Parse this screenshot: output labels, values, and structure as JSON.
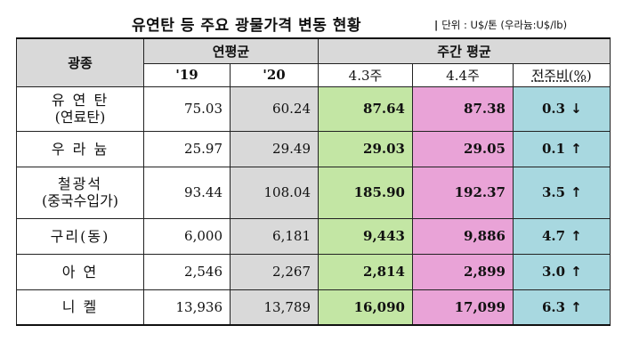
{
  "title": "유연탄 등 주요 광물가격 변동 현황",
  "unit_note": "단위 : U$/톤 (우라늄:U$/lb)",
  "headers": {
    "mineral": "광종",
    "annual_avg": "연평균",
    "weekly_avg": "주간 평균",
    "y19": "'19",
    "y20": "'20",
    "w43": "4.3주",
    "w44": "4.4주",
    "wow": "전주비(%)"
  },
  "rows": [
    {
      "name": "유 연 탄",
      "name2": "(연료탄)",
      "y19": "75.03",
      "y20": "60.24",
      "w43": "87.64",
      "w44": "87.38",
      "chg": "0.3",
      "dir": "down"
    },
    {
      "name": "우 라 늄",
      "name2": "",
      "y19": "25.97",
      "y20": "29.49",
      "w43": "29.03",
      "w44": "29.05",
      "chg": "0.1",
      "dir": "up"
    },
    {
      "name": "철광석",
      "name2": "(중국수입가)",
      "y19": "93.44",
      "y20": "108.04",
      "w43": "185.90",
      "w44": "192.37",
      "chg": "3.5",
      "dir": "up"
    },
    {
      "name": "구리(동)",
      "name2": "",
      "y19": "6,000",
      "y20": "6,181",
      "w43": "9,443",
      "w44": "9,886",
      "chg": "4.7",
      "dir": "up"
    },
    {
      "name": "아 연",
      "name2": "",
      "y19": "2,546",
      "y20": "2,267",
      "w43": "2,814",
      "w44": "2,899",
      "chg": "3.0",
      "dir": "up"
    },
    {
      "name": "니 켈",
      "name2": "",
      "y19": "13,936",
      "y20": "13,789",
      "w43": "16,090",
      "w44": "17,099",
      "chg": "6.3",
      "dir": "up"
    }
  ],
  "icons": {
    "up": "arrow-up-icon",
    "down": "arrow-down-icon"
  }
}
